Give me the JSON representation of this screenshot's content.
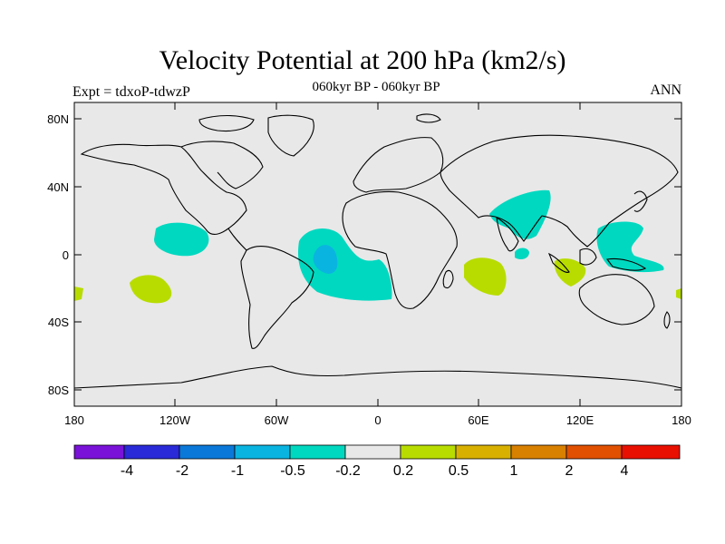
{
  "title": "Velocity Potential at 200 hPa (km2/s)",
  "subtitle": "060kyr BP - 060kyr BP",
  "experiment_label": "Expt = tdxoP-tdwzP",
  "season_label": "ANN",
  "lat_ticks": [
    "80N",
    "40N",
    "0",
    "40S",
    "80S"
  ],
  "lon_ticks": [
    "180",
    "120W",
    "60W",
    "0",
    "60E",
    "120E",
    "180"
  ],
  "colorbar": {
    "colors": [
      "#7a12d8",
      "#2a2ad8",
      "#0a78d8",
      "#0ab4e0",
      "#00d8c0",
      "#e8e8e8",
      "#b8dc00",
      "#d8b000",
      "#d88000",
      "#e05000",
      "#e81000"
    ],
    "labels": [
      "-4",
      "-2",
      "-1",
      "-0.5",
      "-0.2",
      "0.2",
      "0.5",
      "1",
      "2",
      "4"
    ]
  },
  "colors": {
    "background": "#e8e8e8",
    "positive_light": "#b8dc00",
    "negative_light": "#00d8c0",
    "negative_medium": "#0ab4e0"
  }
}
